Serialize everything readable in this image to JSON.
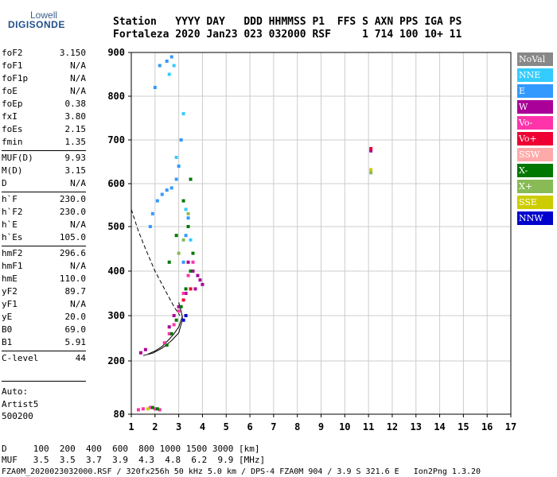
{
  "logo": {
    "top": "Lowell",
    "main": "DIGISONDE"
  },
  "header": {
    "line1": "Station   YYYY DAY   DDD HHMMSS P1  FFS S AXN PPS IGA PS",
    "line2": "Fortaleza 2020 Jan23 023 032000 RSF     1 714 100 10+ 11"
  },
  "params": [
    {
      "k": "foF2",
      "v": "3.150"
    },
    {
      "k": "foF1",
      "v": "N/A"
    },
    {
      "k": "foF1p",
      "v": "N/A"
    },
    {
      "k": "foE",
      "v": "N/A"
    },
    {
      "k": "foEp",
      "v": "0.38"
    },
    {
      "k": "fxI",
      "v": "3.80"
    },
    {
      "k": "foEs",
      "v": "2.15"
    },
    {
      "k": "fmin",
      "v": "1.35"
    },
    {
      "k": "MUF(D)",
      "v": "9.93"
    },
    {
      "k": "M(D)",
      "v": "3.15"
    },
    {
      "k": "D",
      "v": "N/A"
    },
    {
      "k": "h`F",
      "v": "230.0"
    },
    {
      "k": "h`F2",
      "v": "230.0"
    },
    {
      "k": "h`E",
      "v": "N/A"
    },
    {
      "k": "h`Es",
      "v": "105.0"
    },
    {
      "k": "hmF2",
      "v": "296.6"
    },
    {
      "k": "hmF1",
      "v": "N/A"
    },
    {
      "k": "hmE",
      "v": "110.0"
    },
    {
      "k": "yF2",
      "v": "89.7"
    },
    {
      "k": "yF1",
      "v": "N/A"
    },
    {
      "k": "yE",
      "v": "20.0"
    },
    {
      "k": "B0",
      "v": "69.0"
    },
    {
      "k": "B1",
      "v": "5.91"
    },
    {
      "k": "C-level",
      "v": "44"
    }
  ],
  "auto": {
    "l1": "Auto:",
    "l2": "Artist5",
    "l3": "500200"
  },
  "footer": {
    "d_line": "D     100  200  400  600  800 1000 1500 3000 [km]",
    "muf_line": "MUF   3.5  3.5  3.7  3.9  4.3  4.8  6.2  9.9 [MHz]",
    "file_line": "FZA0M_2020023032000.RSF / 320fx256h 50 kHz 5.0 km / DPS-4 FZA0M 904 / 3.9 S 321.6 E   Ion2Png 1.3.20"
  },
  "legend": [
    {
      "label": "NoVal",
      "color": "#888888"
    },
    {
      "label": "NNE",
      "color": "#33ccff"
    },
    {
      "label": "E",
      "color": "#3399ff"
    },
    {
      "label": "W",
      "color": "#aa0099"
    },
    {
      "label": "Vo-",
      "color": "#ff33aa"
    },
    {
      "label": "Vo+",
      "color": "#ee0033"
    },
    {
      "label": "SSW",
      "color": "#ffaaaa"
    },
    {
      "label": "X-",
      "color": "#007700"
    },
    {
      "label": "X+",
      "color": "#88bb55"
    },
    {
      "label": "SSE",
      "color": "#cccc00"
    },
    {
      "label": "NNW",
      "color": "#0000cc"
    }
  ],
  "chart_data": {
    "type": "scatter",
    "xlim": [
      1,
      17
    ],
    "ylim": [
      80,
      900
    ],
    "x_ticks": [
      1,
      2,
      3,
      4,
      5,
      6,
      7,
      8,
      9,
      10,
      11,
      12,
      13,
      14,
      15,
      16,
      17
    ],
    "y_ticks": [
      80,
      200,
      300,
      400,
      500,
      600,
      700,
      800,
      900
    ],
    "grid": true,
    "legend_position": "right",
    "series": [
      {
        "name": "E",
        "color": "#3399ff",
        "points": [
          [
            1.8,
            500
          ],
          [
            1.9,
            530
          ],
          [
            2.1,
            560
          ],
          [
            2.3,
            575
          ],
          [
            2.5,
            585
          ],
          [
            2.7,
            590
          ],
          [
            2.9,
            610
          ],
          [
            3.0,
            640
          ],
          [
            3.1,
            700
          ],
          [
            3.2,
            420
          ],
          [
            3.3,
            480
          ],
          [
            3.4,
            520
          ],
          [
            2.2,
            870
          ],
          [
            2.5,
            880
          ],
          [
            2.7,
            890
          ],
          [
            2.0,
            820
          ]
        ]
      },
      {
        "name": "NNE",
        "color": "#33ccff",
        "points": [
          [
            2.6,
            850
          ],
          [
            2.8,
            870
          ],
          [
            3.2,
            760
          ],
          [
            3.3,
            540
          ],
          [
            3.5,
            470
          ],
          [
            2.9,
            660
          ]
        ]
      },
      {
        "name": "W",
        "color": "#aa0099",
        "points": [
          [
            3.8,
            390
          ],
          [
            3.9,
            380
          ],
          [
            4.0,
            370
          ],
          [
            3.6,
            400
          ],
          [
            3.7,
            360
          ],
          [
            3.3,
            350
          ],
          [
            3.4,
            420
          ],
          [
            2.6,
            275
          ],
          [
            2.8,
            300
          ],
          [
            3.0,
            320
          ],
          [
            1.4,
            218
          ],
          [
            1.6,
            225
          ],
          [
            11.1,
            675
          ]
        ]
      },
      {
        "name": "Vo-",
        "color": "#ff33aa",
        "points": [
          [
            2.4,
            240
          ],
          [
            2.6,
            260
          ],
          [
            2.8,
            280
          ],
          [
            3.0,
            310
          ],
          [
            3.2,
            350
          ],
          [
            3.4,
            390
          ],
          [
            3.6,
            420
          ],
          [
            1.3,
            90
          ],
          [
            1.5,
            92
          ],
          [
            1.8,
            95
          ],
          [
            2.0,
            92
          ],
          [
            2.2,
            90
          ]
        ]
      },
      {
        "name": "Vo+",
        "color": "#ee0033",
        "points": [
          [
            3.2,
            335
          ],
          [
            3.5,
            360
          ],
          [
            11.1,
            680
          ]
        ]
      },
      {
        "name": "X-",
        "color": "#007700",
        "points": [
          [
            2.5,
            235
          ],
          [
            2.7,
            260
          ],
          [
            2.9,
            290
          ],
          [
            3.1,
            320
          ],
          [
            3.3,
            360
          ],
          [
            3.5,
            400
          ],
          [
            3.6,
            440
          ],
          [
            3.4,
            500
          ],
          [
            3.2,
            560
          ],
          [
            3.5,
            610
          ],
          [
            2.9,
            480
          ],
          [
            2.6,
            420
          ],
          [
            1.9,
            95
          ],
          [
            2.1,
            92
          ]
        ]
      },
      {
        "name": "X+",
        "color": "#88bb55",
        "points": [
          [
            3.0,
            440
          ],
          [
            3.2,
            470
          ],
          [
            3.4,
            530
          ],
          [
            11.1,
            625
          ]
        ]
      },
      {
        "name": "SSE",
        "color": "#cccc00",
        "points": [
          [
            1.7,
            92
          ],
          [
            11.1,
            632
          ]
        ]
      },
      {
        "name": "NNW",
        "color": "#0000cc",
        "points": [
          [
            3.3,
            300
          ],
          [
            3.2,
            290
          ]
        ]
      }
    ],
    "curves": [
      {
        "name": "dashed",
        "style": "dashed",
        "points": [
          [
            1.0,
            540
          ],
          [
            1.3,
            490
          ],
          [
            1.6,
            450
          ],
          [
            2.0,
            400
          ],
          [
            2.4,
            360
          ],
          [
            2.8,
            320
          ],
          [
            3.05,
            300
          ]
        ]
      },
      {
        "name": "profile",
        "style": "solid",
        "points": [
          [
            1.7,
            215
          ],
          [
            2.0,
            222
          ],
          [
            2.3,
            232
          ],
          [
            2.6,
            248
          ],
          [
            2.8,
            260
          ],
          [
            3.0,
            275
          ],
          [
            3.1,
            290
          ],
          [
            3.15,
            297
          ],
          [
            3.1,
            310
          ],
          [
            3.0,
            330
          ]
        ]
      },
      {
        "name": "fit",
        "style": "solid",
        "points": [
          [
            1.5,
            212
          ],
          [
            1.9,
            217
          ],
          [
            2.3,
            228
          ],
          [
            2.7,
            245
          ],
          [
            3.0,
            262
          ],
          [
            3.15,
            290
          ],
          [
            3.15,
            300
          ]
        ]
      }
    ]
  }
}
